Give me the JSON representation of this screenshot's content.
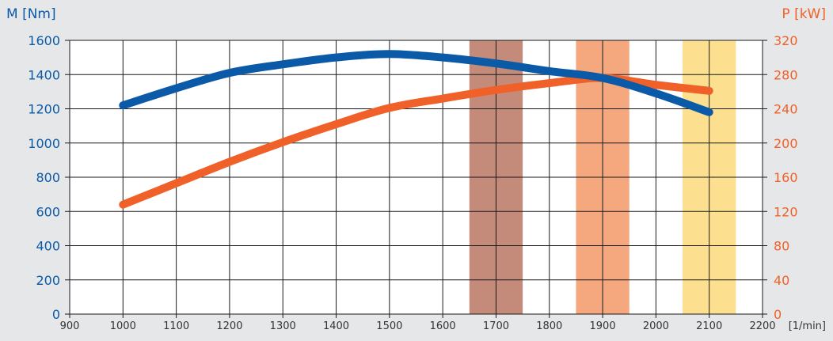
{
  "colors": {
    "torque": "#0a5aa8",
    "power": "#f0612a",
    "band1": "#c48a7a",
    "band2": "#f5a87e",
    "band3": "#fde08f",
    "background": "#e6e7e8",
    "plot_bg": "#ffffff",
    "grid": "#1a1a1a",
    "tick_text": "#333333"
  },
  "chart_data": {
    "type": "line",
    "x_unit_label": "[1/min]",
    "x_ticks": [
      900,
      1000,
      1100,
      1200,
      1300,
      1400,
      1500,
      1600,
      1700,
      1800,
      1900,
      2000,
      2100,
      2200
    ],
    "xlim": [
      900,
      2200
    ],
    "y_left": {
      "label": "M [Nm]",
      "ylim": [
        0,
        1600
      ],
      "ticks": [
        0,
        200,
        400,
        600,
        800,
        1000,
        1200,
        1400,
        1600
      ]
    },
    "y_right": {
      "label": "P [kW]",
      "ylim": [
        0,
        320
      ],
      "ticks": [
        0,
        40,
        80,
        120,
        160,
        200,
        240,
        280,
        320
      ]
    },
    "grid": true,
    "bands": [
      {
        "x_start": 1650,
        "x_end": 1750,
        "color": "#c48a7a"
      },
      {
        "x_start": 1850,
        "x_end": 1950,
        "color": "#f5a87e"
      },
      {
        "x_start": 2050,
        "x_end": 2150,
        "color": "#fde08f"
      }
    ],
    "series": [
      {
        "axis": "left",
        "color": "#0a5aa8",
        "x": [
          1000,
          1100,
          1200,
          1300,
          1400,
          1500,
          1600,
          1700,
          1800,
          1900,
          2000,
          2100
        ],
        "values": [
          1220,
          1320,
          1410,
          1460,
          1500,
          1520,
          1500,
          1465,
          1420,
          1380,
          1290,
          1180
        ]
      },
      {
        "axis": "right",
        "color": "#f0612a",
        "x": [
          1000,
          1100,
          1200,
          1300,
          1400,
          1500,
          1600,
          1700,
          1800,
          1900,
          2000,
          2100
        ],
        "values": [
          128,
          153,
          178,
          201,
          222,
          241,
          252,
          262,
          270,
          276,
          268,
          261
        ]
      }
    ]
  }
}
